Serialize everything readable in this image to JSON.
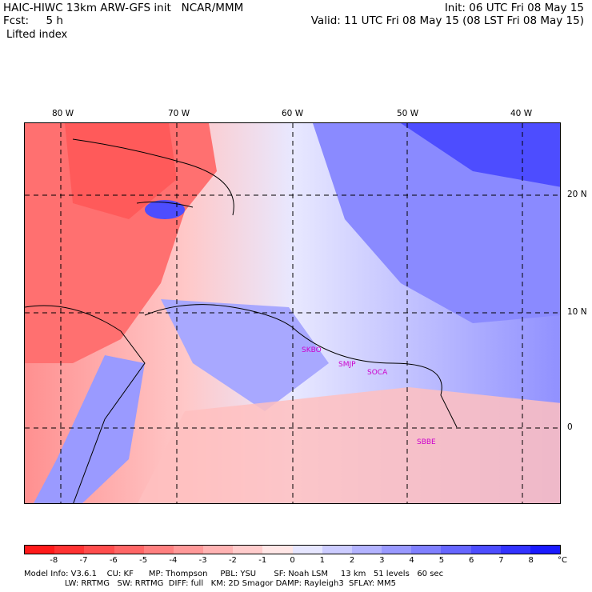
{
  "header": {
    "left_line1": "HAIC-HIWC 13km ARW-GFS init   NCAR/MMM",
    "left_line2": "Fcst:     5 h",
    "right_line1": "Init: 06 UTC Fri 08 May 15",
    "right_line2": "Valid: 11 UTC Fri 08 May 15 (08 LST Fri 08 May 15)",
    "field_title": "Lifted index"
  },
  "axes": {
    "lon_labels": [
      "80 W",
      "70 W",
      "60 W",
      "50 W",
      "40 W"
    ],
    "lat_labels": [
      "20 N",
      "10 N",
      "0"
    ]
  },
  "stations": [
    "SKBO",
    "SMJP",
    "SOCA",
    "SBBE"
  ],
  "colorbar": {
    "colors": [
      "#ff1a1a",
      "#ff3333",
      "#ff4d4d",
      "#ff6666",
      "#ff8080",
      "#ff9999",
      "#ffb3b3",
      "#ffcccc",
      "#ffe6e6",
      "#e6e6ff",
      "#ccccff",
      "#b3b3ff",
      "#9999ff",
      "#8080ff",
      "#6666ff",
      "#4d4dff",
      "#3333ff",
      "#1a1aff"
    ],
    "ticks": [
      "-8",
      "-7",
      "-6",
      "-5",
      "-4",
      "-3",
      "-2",
      "-1",
      "0",
      "1",
      "2",
      "3",
      "4",
      "5",
      "6",
      "7",
      "8"
    ],
    "unit": "°C"
  },
  "model_info": {
    "line1": "Model Info: V3.6.1    CU: KF      MP: Thompson     PBL: YSU       SF: Noah LSM     13 km   51 levels   60 sec",
    "line2": "                LW: RRTMG   SW: RRTMG  DIFF: full   KM: 2D Smagor DAMP: Rayleigh3  SFLAY: MM5"
  }
}
